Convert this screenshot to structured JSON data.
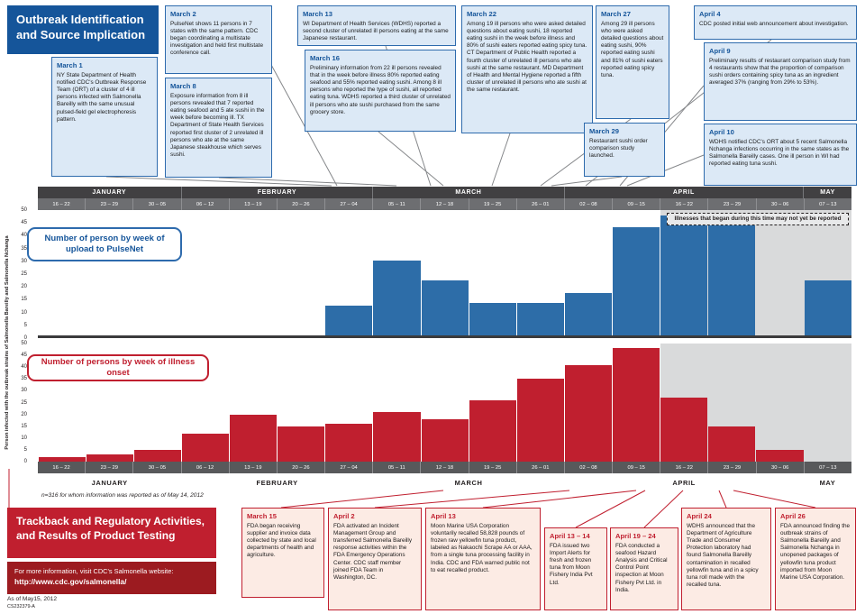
{
  "sections": {
    "top_title": "Outbreak Identification and Source Implication",
    "bottom_title": "Trackback and Regulatory Activities, and Results of Product Testing",
    "info_line": "For more information, visit CDC's Salmonella website:",
    "info_url": "http://www.cdc.gov/salmonella/",
    "as_of": "As of May15, 2012",
    "doc_id": "CS232379-A",
    "note": "n=316 for whom information was reported as of May 14, 2012"
  },
  "timeline": {
    "months": [
      "JANUARY",
      "FEBRUARY",
      "MARCH",
      "APRIL",
      "MAY"
    ],
    "month_spans": [
      3,
      4,
      4,
      5,
      1
    ],
    "weeks": [
      "16 – 22",
      "23 – 29",
      "30 – 05",
      "06 – 12",
      "13 – 19",
      "20 – 26",
      "27 – 04",
      "05 – 11",
      "12 – 18",
      "19 – 25",
      "26 – 01",
      "02 – 08",
      "09 – 15",
      "16 – 22",
      "23 – 29",
      "30 – 06",
      "07 – 13"
    ],
    "ylabel": "Person infected with the outbreak strains of Salmonella Bareilly and Salmonella Nchanga"
  },
  "chart_data": [
    {
      "type": "bar",
      "title": "Number of person by week of upload to PulseNet",
      "categories": [
        "16 – 22",
        "23 – 29",
        "30 – 05",
        "06 – 12",
        "13 – 19",
        "20 – 26",
        "27 – 04",
        "05 – 11",
        "12 – 18",
        "19 – 25",
        "26 – 01",
        "02 – 08",
        "09 – 15",
        "16 – 22",
        "23 – 29",
        "30 – 06",
        "07 – 13"
      ],
      "values": [
        0,
        0,
        0,
        0,
        0,
        0,
        12,
        30,
        22,
        13,
        13,
        17,
        43,
        48,
        48,
        0,
        22
      ],
      "bar_color": "#2d6da8",
      "ylim": [
        0,
        50
      ],
      "yticks": [
        50,
        45,
        40,
        35,
        30,
        25,
        20,
        15,
        10,
        5,
        0
      ],
      "unreported_start_index": 13,
      "unreported_label": "Illnesses that began during this time may not yet be reported"
    },
    {
      "type": "bar",
      "title": "Number of persons by week of illness onset",
      "categories": [
        "16 – 22",
        "23 – 29",
        "30 – 05",
        "06 – 12",
        "13 – 19",
        "20 – 26",
        "27 – 04",
        "05 – 11",
        "12 – 18",
        "19 – 25",
        "26 – 01",
        "02 – 08",
        "09 – 15",
        "16 – 22",
        "23 – 29",
        "30 – 06",
        "07 – 13"
      ],
      "values": [
        2,
        3,
        5,
        12,
        20,
        15,
        16,
        21,
        18,
        26,
        35,
        41,
        48,
        27,
        15,
        5,
        0
      ],
      "bar_color": "#c01f2f",
      "ylim": [
        0,
        50
      ],
      "yticks": [
        50,
        45,
        40,
        35,
        30,
        25,
        20,
        15,
        10,
        5,
        0
      ],
      "unreported_start_index": 13
    }
  ],
  "top_events": [
    {
      "date": "March 1",
      "text": "NY State Department of Health notified CDC's Outbreak Response Team (ORT) of a cluster of 4 ill persons infected with Salmonella Bareilly with the same unusual pulsed-field gel electrophoresis pattern."
    },
    {
      "date": "March 2",
      "text": "PulseNet shows 11 persons in 7 states with the same pattern. CDC began coordinating a multistate investigation and held first multistate conference call."
    },
    {
      "date": "March 8",
      "text": "Exposure information from 8 ill persons revealed that 7 reported eating seafood and 5 ate sushi in the week before becoming ill. TX Department of State Health Services reported first cluster of 2 unrelated ill persons who ate at the same Japanese steakhouse which serves sushi."
    },
    {
      "date": "March 13",
      "text": "WI Department of Health Services (WDHS) reported a second cluster of unrelated ill persons eating at the same Japanese restaurant."
    },
    {
      "date": "March 16",
      "text": "Preliminary information from 22 ill persons revealed that in the week before illness 80% reported eating seafood and 55% reported eating sushi. Among 8 ill persons who reported the type of sushi, all reported eating tuna. WDHS reported a third cluster of unrelated ill persons who ate sushi purchased from the same grocery store."
    },
    {
      "date": "March 22",
      "text": "Among 19 ill persons who were asked detailed questions about eating sushi, 18 reported eating sushi in the week before illness and 80% of sushi eaters reported eating spicy tuna. CT Department of Public Health reported a fourth cluster of unrelated ill persons who ate sushi at the same restaurant. MD Department of Health and Mental Hygiene reported a fifth cluster of unrelated ill persons who ate sushi at the same restaurant."
    },
    {
      "date": "March 27",
      "text": "Among 29 ill persons who were asked detailed questions about eating sushi, 90% reported eating sushi and 81% of sushi eaters reported eating spicy tuna."
    },
    {
      "date": "March 29",
      "text": "Restaurant sushi order comparison study launched."
    },
    {
      "date": "April 4",
      "text": "CDC posted initial web announcement about investigation."
    },
    {
      "date": "April 9",
      "text": "Preliminary results of restaurant comparison study from 4 restaurants show that the proportion of comparison sushi orders containing spicy tuna as an ingredient averaged 37% (ranging from 29% to 53%)."
    },
    {
      "date": "April 10",
      "text": "WDHS notified CDC's ORT about 5 recent Salmonella Nchanga infections occurring in the same states as the Salmonella Bareilly cases. One ill person in WI had reported eating tuna sushi."
    }
  ],
  "bottom_events": [
    {
      "date": "March 15",
      "text": "FDA began receiving supplier and invoice data collected by state and local departments of health and agriculture."
    },
    {
      "date": "April 2",
      "text": "FDA activated an Incident Management Group and transferred Salmonella Bareilly response activities within the FDA Emergency Operations Center.  CDC staff member joined FDA Team in Washington, DC."
    },
    {
      "date": "April 13",
      "text": "Moon Marine USA Corporation voluntarily recalled 58,828 pounds of frozen raw yellowfin tuna product, labeled as Nakaochi Scrape AA or AAA, from a single tuna processing facility in India. CDC and FDA warned public not to eat recalled product."
    },
    {
      "date": "April 13 – 14",
      "text": "FDA issued two Import Alerts for fresh and frozen tuna from Moon Fishery India Pvt Ltd."
    },
    {
      "date": "April 19 – 24",
      "text": "FDA conducted a seafood Hazard Analysis and Critical Control Point inspection at Moon Fishery Pvt Ltd. in India."
    },
    {
      "date": "April 24",
      "text": "WDHS announced that the Department of Agriculture Trade and Consumer Protection laboratory had found Salmonella Bareilly contamination in recalled yellowfin tuna and in a spicy tuna roll made with the recalled tuna."
    },
    {
      "date": "April 26",
      "text": "FDA announced finding the outbreak strains of Salmonella Bareilly and Salmonella Nchanga in unopened packages of yellowfin tuna product imported from Moon Marine USA Corporation."
    }
  ]
}
